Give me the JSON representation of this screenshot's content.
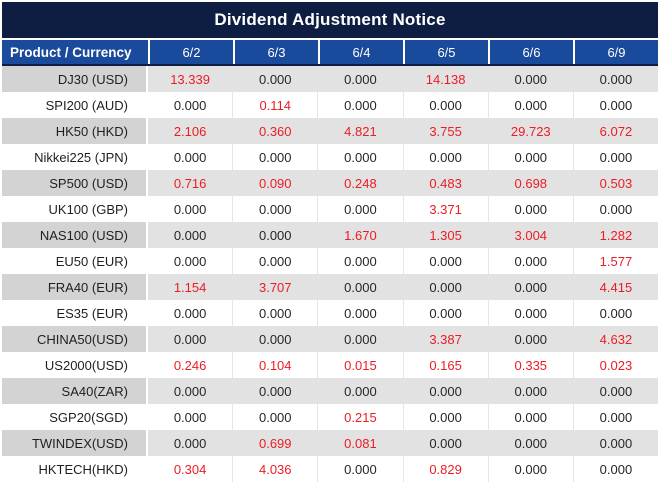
{
  "title": "Dividend Adjustment Notice",
  "table": {
    "header": {
      "product_col": "Product / Currency",
      "dates": [
        "6/2",
        "6/3",
        "6/4",
        "6/5",
        "6/6",
        "6/9"
      ]
    },
    "rows": [
      {
        "label": "DJ30 (USD)",
        "values": [
          "13.339",
          "0.000",
          "0.000",
          "14.138",
          "0.000",
          "0.000"
        ]
      },
      {
        "label": "SPI200 (AUD)",
        "values": [
          "0.000",
          "0.114",
          "0.000",
          "0.000",
          "0.000",
          "0.000"
        ]
      },
      {
        "label": "HK50 (HKD)",
        "values": [
          "2.106",
          "0.360",
          "4.821",
          "3.755",
          "29.723",
          "6.072"
        ]
      },
      {
        "label": "Nikkei225 (JPN)",
        "values": [
          "0.000",
          "0.000",
          "0.000",
          "0.000",
          "0.000",
          "0.000"
        ]
      },
      {
        "label": "SP500 (USD)",
        "values": [
          "0.716",
          "0.090",
          "0.248",
          "0.483",
          "0.698",
          "0.503"
        ]
      },
      {
        "label": "UK100 (GBP)",
        "values": [
          "0.000",
          "0.000",
          "0.000",
          "3.371",
          "0.000",
          "0.000"
        ]
      },
      {
        "label": "NAS100 (USD)",
        "values": [
          "0.000",
          "0.000",
          "1.670",
          "1.305",
          "3.004",
          "1.282"
        ]
      },
      {
        "label": "EU50 (EUR)",
        "values": [
          "0.000",
          "0.000",
          "0.000",
          "0.000",
          "0.000",
          "1.577"
        ]
      },
      {
        "label": "FRA40 (EUR)",
        "values": [
          "1.154",
          "3.707",
          "0.000",
          "0.000",
          "0.000",
          "4.415"
        ]
      },
      {
        "label": "ES35 (EUR)",
        "values": [
          "0.000",
          "0.000",
          "0.000",
          "0.000",
          "0.000",
          "0.000"
        ]
      },
      {
        "label": "CHINA50(USD)",
        "values": [
          "0.000",
          "0.000",
          "0.000",
          "3.387",
          "0.000",
          "4.632"
        ]
      },
      {
        "label": "US2000(USD)",
        "values": [
          "0.246",
          "0.104",
          "0.015",
          "0.165",
          "0.335",
          "0.023"
        ]
      },
      {
        "label": "SA40(ZAR)",
        "values": [
          "0.000",
          "0.000",
          "0.000",
          "0.000",
          "0.000",
          "0.000"
        ]
      },
      {
        "label": "SGP20(SGD)",
        "values": [
          "0.000",
          "0.000",
          "0.215",
          "0.000",
          "0.000",
          "0.000"
        ]
      },
      {
        "label": "TWINDEX(USD)",
        "values": [
          "0.000",
          "0.699",
          "0.081",
          "0.000",
          "0.000",
          "0.000"
        ]
      },
      {
        "label": "HKTECH(HKD)",
        "values": [
          "0.304",
          "4.036",
          "0.000",
          "0.829",
          "0.000",
          "0.000"
        ]
      }
    ]
  },
  "colors": {
    "title_bar_bg": "#0e1e42",
    "header_bg": "#1a4a9c",
    "header_text": "#ffffff",
    "stripe_label_bg": "#d3d3d3",
    "stripe_value_bg": "#e2e2e2",
    "white_row_bg": "#ffffff",
    "nonzero_value_color": "#ed1c24",
    "zero_value_color": "#262626"
  }
}
